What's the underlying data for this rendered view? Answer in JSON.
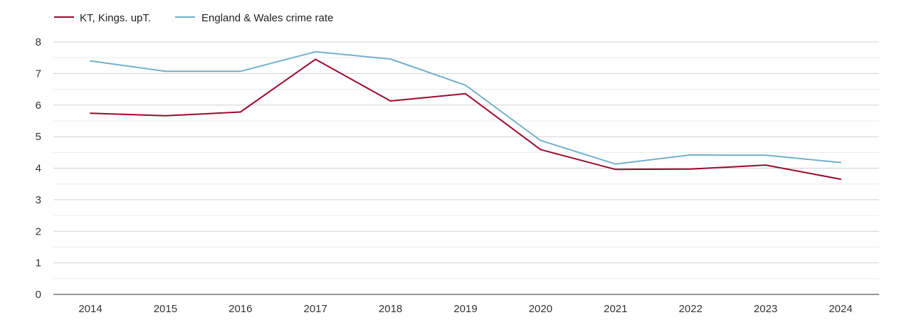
{
  "chart_data": {
    "type": "line",
    "title": "",
    "xlabel": "",
    "ylabel": "",
    "x": [
      "2014",
      "2015",
      "2016",
      "2017",
      "2018",
      "2019",
      "2020",
      "2021",
      "2022",
      "2023",
      "2024"
    ],
    "y_ticks": [
      "0",
      "1",
      "2",
      "3",
      "4",
      "5",
      "6",
      "7",
      "8"
    ],
    "ylim": [
      0,
      8
    ],
    "grid": true,
    "legend_position": "top-left",
    "series": [
      {
        "name": "KT, Kings. upT.",
        "color": "#9b0a30",
        "values": [
          5.74,
          5.66,
          5.78,
          7.45,
          6.13,
          6.36,
          4.59,
          3.96,
          3.97,
          4.1,
          3.65
        ]
      },
      {
        "name": "England & Wales crime rate",
        "color": "#74b0cc",
        "values": [
          7.4,
          7.07,
          7.07,
          7.69,
          7.46,
          6.63,
          4.88,
          4.13,
          4.42,
          4.41,
          4.18
        ]
      }
    ]
  }
}
